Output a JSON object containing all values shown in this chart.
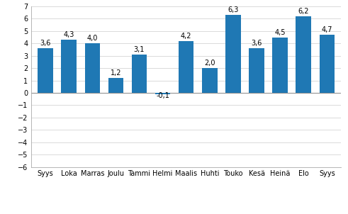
{
  "categories": [
    "Syys",
    "Loka",
    "Marras",
    "Joulu",
    "Tammi",
    "Helmi",
    "Maalis",
    "Huhti",
    "Touko",
    "Kesä",
    "Heinä",
    "Elo",
    "Syys"
  ],
  "values": [
    3.6,
    4.3,
    4.0,
    1.2,
    3.1,
    -0.1,
    4.2,
    2.0,
    6.3,
    3.6,
    4.5,
    6.2,
    4.7
  ],
  "bar_color": "#1F78B4",
  "ylim": [
    -6,
    7
  ],
  "yticks": [
    -6,
    -5,
    -4,
    -3,
    -2,
    -1,
    0,
    1,
    2,
    3,
    4,
    5,
    6,
    7
  ],
  "value_labels": [
    "3,6",
    "4,3",
    "4,0",
    "1,2",
    "3,1",
    "-0,1",
    "4,2",
    "2,0",
    "6,3",
    "3,6",
    "4,5",
    "6,2",
    "4,7"
  ],
  "label_offsets": [
    0.12,
    0.12,
    0.12,
    0.12,
    0.12,
    -0.4,
    0.12,
    0.12,
    0.12,
    0.12,
    0.12,
    0.12,
    0.12
  ],
  "background_color": "#ffffff",
  "grid_color": "#cccccc",
  "label_fontsize": 7.0,
  "tick_fontsize": 7.0,
  "year_2016_idx": 0,
  "year_2017_idx": 12
}
